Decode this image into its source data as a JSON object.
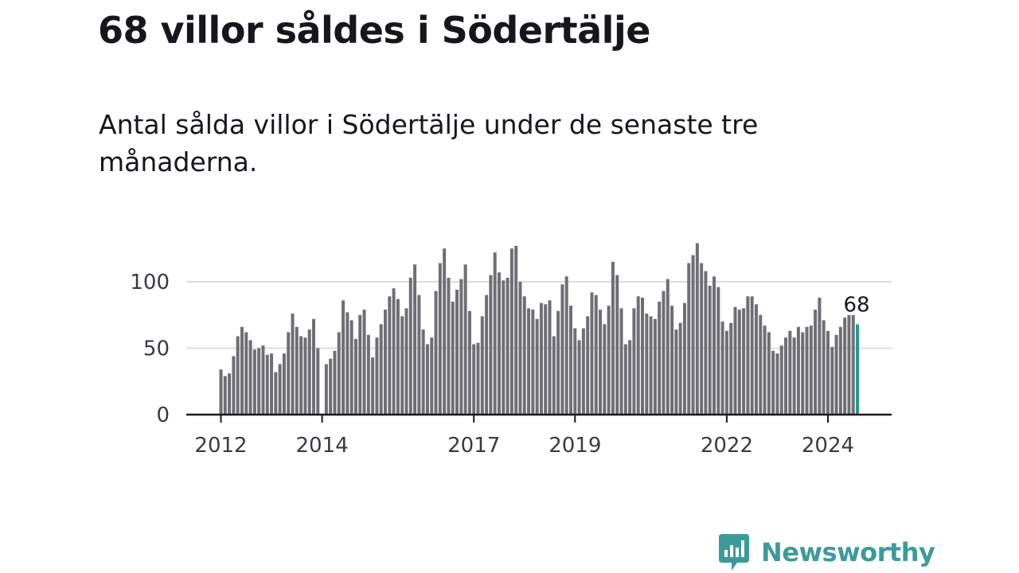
{
  "header": {
    "title": "68 villor såldes i Södertälje",
    "subtitle": "Antal sålda villor i Södertälje under de senaste tre månaderna."
  },
  "brand": {
    "name": "Newsworthy",
    "color": "#3d9a9a"
  },
  "colors": {
    "bar": "#6e6e74",
    "highlight": "#20998f",
    "grid": "#dcdcdc",
    "axis": "#1a1a1a"
  },
  "chart_data": {
    "type": "bar",
    "title": "68 villor såldes i Södertälje",
    "subtitle": "Antal sålda villor i Södertälje under de senaste tre månaderna.",
    "xlabel": "",
    "ylabel": "",
    "ylim": [
      0,
      140
    ],
    "yticks": [
      0,
      50,
      100
    ],
    "grid": true,
    "x_start": "2012-01",
    "x_interval": "month",
    "xticks": [
      {
        "label": "2012",
        "index": 0
      },
      {
        "label": "2014",
        "index": 24
      },
      {
        "label": "2017",
        "index": 60
      },
      {
        "label": "2019",
        "index": 84
      },
      {
        "label": "2022",
        "index": 120
      },
      {
        "label": "2024",
        "index": 144
      }
    ],
    "highlight": {
      "index": 151,
      "label": "68",
      "value": 68
    },
    "values": [
      34,
      29,
      31,
      44,
      59,
      66,
      62,
      56,
      49,
      50,
      52,
      45,
      46,
      32,
      38,
      46,
      62,
      76,
      66,
      59,
      58,
      64,
      72,
      50,
      0,
      38,
      42,
      48,
      62,
      86,
      77,
      71,
      57,
      75,
      79,
      60,
      43,
      58,
      68,
      79,
      89,
      95,
      87,
      74,
      80,
      103,
      113,
      90,
      64,
      53,
      58,
      93,
      114,
      125,
      103,
      85,
      94,
      102,
      113,
      78,
      53,
      54,
      74,
      90,
      105,
      122,
      107,
      101,
      103,
      125,
      127,
      100,
      89,
      80,
      79,
      72,
      84,
      83,
      86,
      59,
      78,
      98,
      104,
      82,
      65,
      56,
      65,
      74,
      92,
      90,
      79,
      68,
      82,
      115,
      105,
      80,
      53,
      56,
      80,
      89,
      88,
      76,
      74,
      72,
      85,
      93,
      102,
      82,
      64,
      69,
      84,
      114,
      120,
      129,
      114,
      108,
      97,
      104,
      96,
      70,
      63,
      69,
      81,
      79,
      80,
      89,
      89,
      83,
      75,
      67,
      62,
      48,
      46,
      52,
      58,
      63,
      58,
      66,
      62,
      66,
      67,
      79,
      88,
      71,
      63,
      51,
      60,
      66,
      73,
      75,
      75,
      68
    ]
  }
}
